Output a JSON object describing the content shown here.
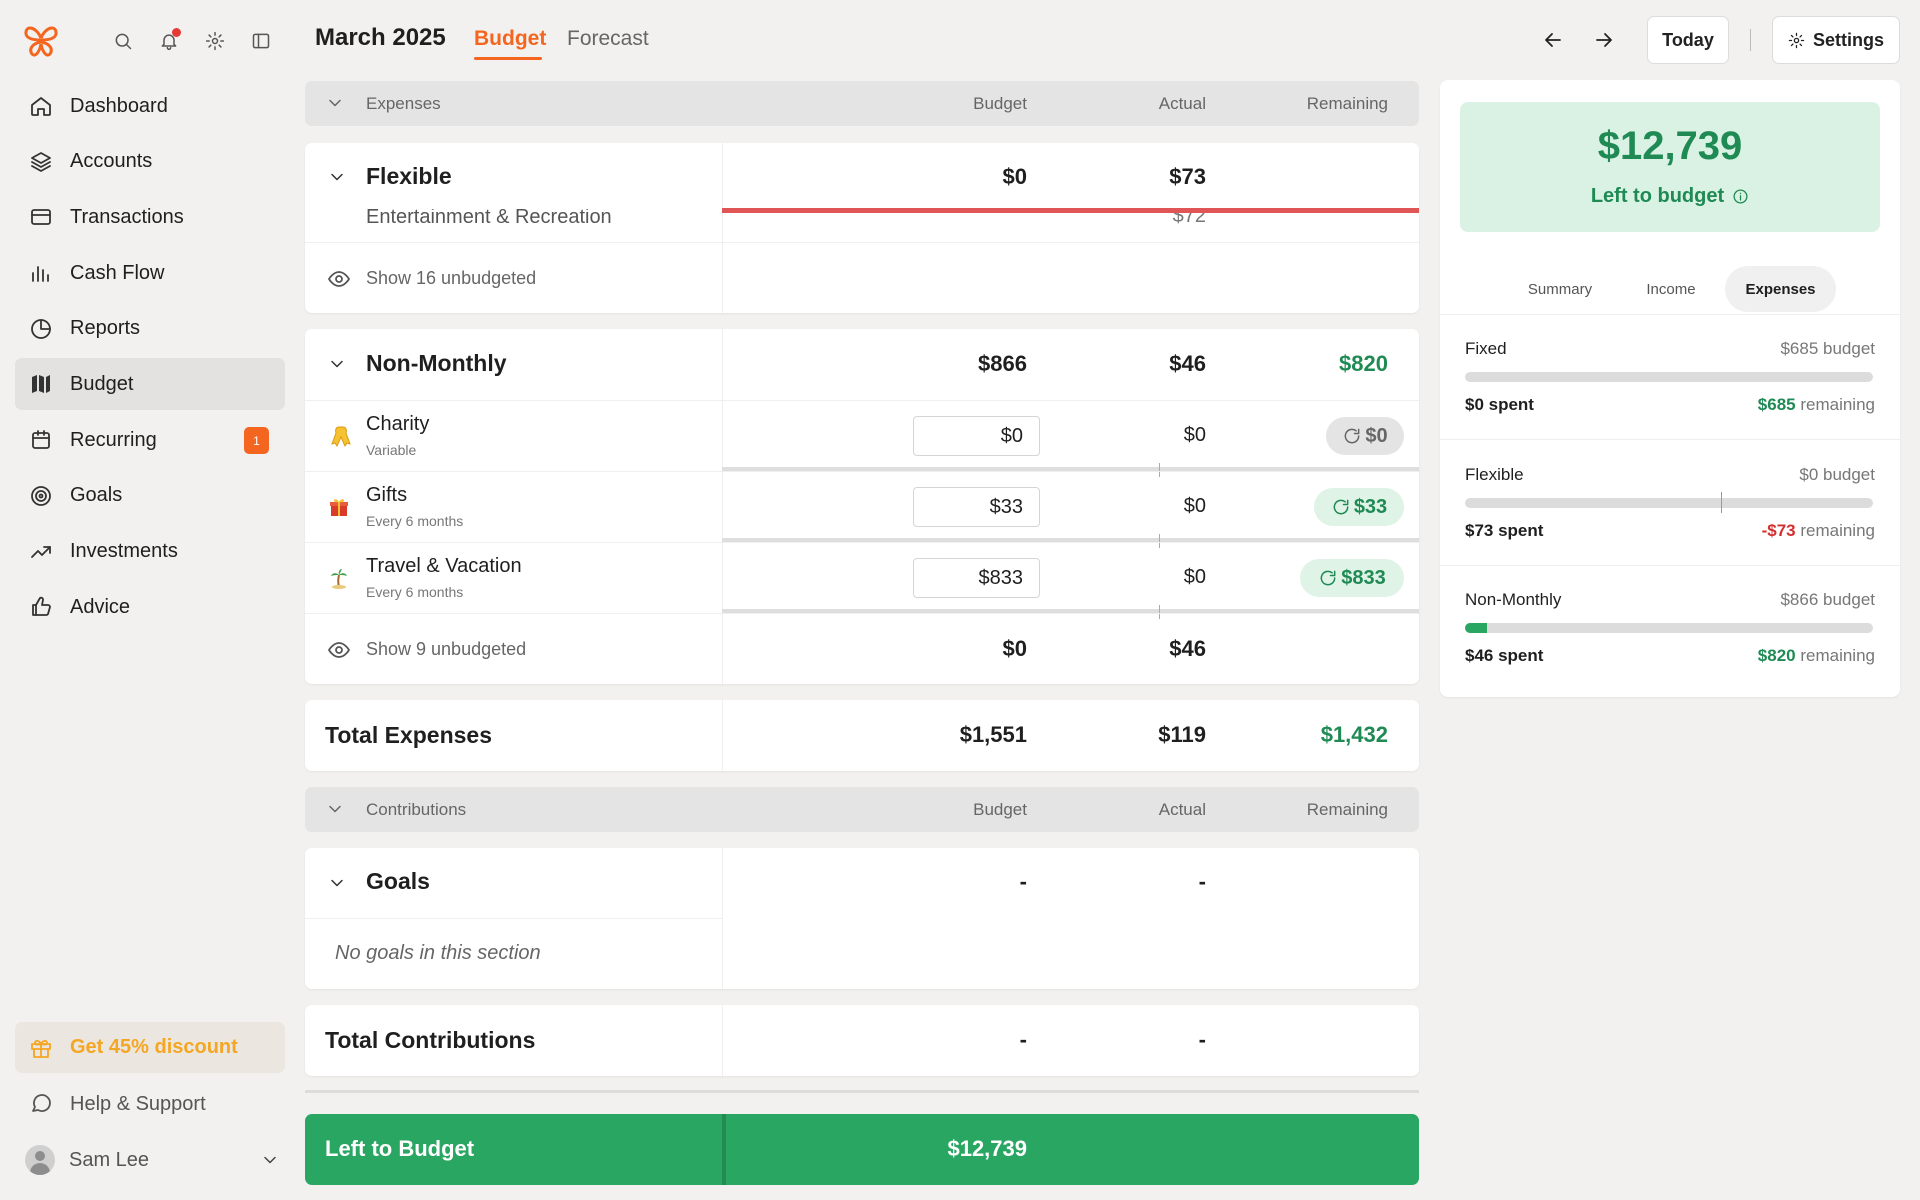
{
  "header": {
    "month": "March 2025",
    "tabs": [
      "Budget",
      "Forecast"
    ],
    "today": "Today",
    "settings": "Settings"
  },
  "sidebar": {
    "items": [
      {
        "label": "Dashboard",
        "icon": "home-icon"
      },
      {
        "label": "Accounts",
        "icon": "layers-icon"
      },
      {
        "label": "Transactions",
        "icon": "credit-card-icon"
      },
      {
        "label": "Cash Flow",
        "icon": "bar-chart-icon"
      },
      {
        "label": "Reports",
        "icon": "pie-chart-icon"
      },
      {
        "label": "Budget",
        "icon": "map-icon",
        "active": true
      },
      {
        "label": "Recurring",
        "icon": "calendar-icon",
        "badge": "1"
      },
      {
        "label": "Goals",
        "icon": "target-icon"
      },
      {
        "label": "Investments",
        "icon": "trending-up-icon"
      },
      {
        "label": "Advice",
        "icon": "thumbs-up-icon"
      }
    ],
    "promo": "Get 45% discount",
    "help": "Help & Support",
    "user": "Sam Lee"
  },
  "expenses": {
    "header": {
      "title": "Expenses",
      "budget": "Budget",
      "actual": "Actual",
      "remaining": "Remaining"
    },
    "flexible": {
      "title": "Flexible",
      "budget": "$0",
      "actual": "$73",
      "hidden_row": "Entertainment & Recreation",
      "hidden_actual": "$72",
      "show": "Show 16 unbudgeted"
    },
    "non_monthly": {
      "title": "Non-Monthly",
      "budget": "$866",
      "actual": "$46",
      "remaining": "$820",
      "rows": [
        {
          "name": "Charity",
          "sub": "Variable",
          "budget": "$0",
          "actual": "$0",
          "remaining": "$0"
        },
        {
          "name": "Gifts",
          "sub": "Every 6 months",
          "budget": "$33",
          "actual": "$0",
          "remaining": "$33"
        },
        {
          "name": "Travel & Vacation",
          "sub": "Every 6 months",
          "budget": "$833",
          "actual": "$0",
          "remaining": "$833"
        }
      ],
      "show": "Show 9 unbudgeted",
      "show_budget": "$0",
      "show_actual": "$46"
    },
    "total": {
      "title": "Total Expenses",
      "budget": "$1,551",
      "actual": "$119",
      "remaining": "$1,432"
    }
  },
  "contributions": {
    "header": {
      "title": "Contributions",
      "budget": "Budget",
      "actual": "Actual",
      "remaining": "Remaining"
    },
    "goals": {
      "title": "Goals",
      "budget": "-",
      "actual": "-",
      "empty": "No goals in this section"
    },
    "total": {
      "title": "Total Contributions",
      "budget": "-",
      "actual": "-"
    }
  },
  "left_to_budget": {
    "label": "Left to Budget",
    "value": "$12,739"
  },
  "panel": {
    "amount": "$12,739",
    "label": "Left to budget",
    "tabs": [
      "Summary",
      "Income",
      "Expenses"
    ],
    "groups": [
      {
        "name": "Fixed",
        "budget": "$685 budget",
        "spent": "$0 spent",
        "remaining_amt": "$685",
        "remaining_word": "remaining",
        "progress": 0
      },
      {
        "name": "Flexible",
        "budget": "$0 budget",
        "spent": "$73 spent",
        "remaining_amt": "-$73",
        "remaining_word": "remaining",
        "progress": 0
      },
      {
        "name": "Non-Monthly",
        "budget": "$866 budget",
        "spent": "$46 spent",
        "remaining_amt": "$820",
        "remaining_word": "remaining",
        "progress": 0.053
      }
    ]
  },
  "colors": {
    "accent": "#f4661f",
    "green": "#1f8a54",
    "ltb_bg": "#2aa663",
    "danger": "#d32f2f"
  }
}
